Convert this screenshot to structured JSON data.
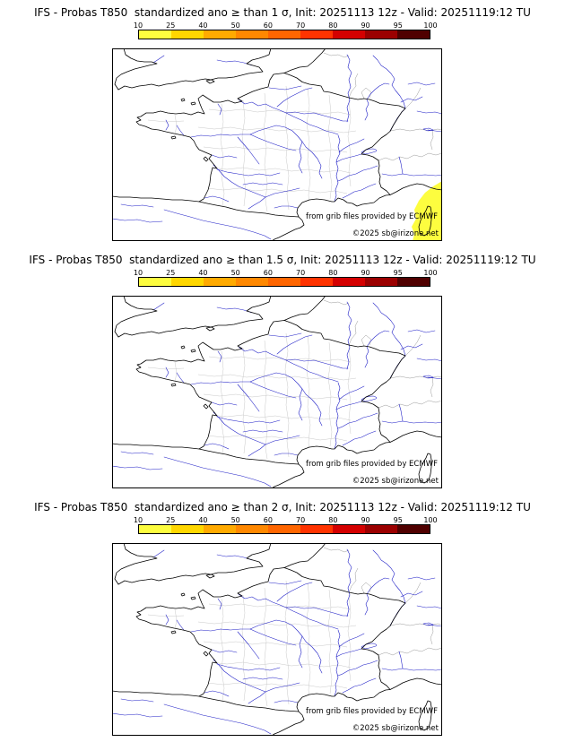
{
  "colorbar": {
    "tick_labels": [
      "10",
      "25",
      "40",
      "50",
      "60",
      "70",
      "80",
      "90",
      "95",
      "100"
    ],
    "segment_colors": [
      "#fdfd3f",
      "#ffd700",
      "#ffaa00",
      "#ff8800",
      "#ff6600",
      "#ff3300",
      "#d40000",
      "#9b0000",
      "#500000"
    ]
  },
  "panels": [
    {
      "title": "IFS - Probas T850  standardized ano ≥ than 1 σ, Init: 20251113 12z - Valid: 20251119:12 TU",
      "attribution": "from grib files provided by ECMWF",
      "copyright": "©2025 sb@irizone.net",
      "has_probability_area": true
    },
    {
      "title": "IFS - Probas T850  standardized ano ≥ than 1.5 σ, Init: 20251113 12z - Valid: 20251119:12 TU",
      "attribution": "from grib files provided by ECMWF",
      "copyright": "©2025 sb@irizone.net",
      "has_probability_area": false
    },
    {
      "title": "IFS - Probas T850  standardized ano ≥ than 2 σ, Init: 20251113 12z - Valid: 20251119:12 TU",
      "attribution": "from grib files provided by ECMWF",
      "copyright": "©2025 sb@irizone.net",
      "has_probability_area": false
    }
  ],
  "map_colors": {
    "coastline": "#000000",
    "rivers": "#2323c8",
    "country_borders": "#999999",
    "department_borders": "#c9c9c9",
    "sea_land": "#ffffff"
  }
}
